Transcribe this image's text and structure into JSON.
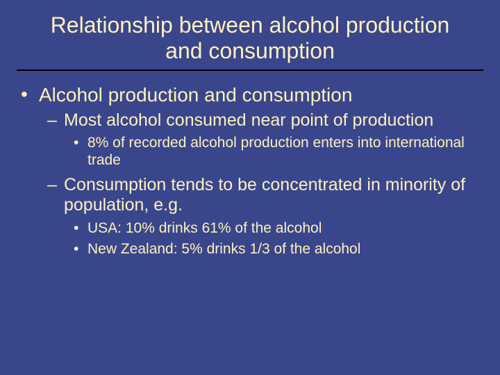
{
  "slide": {
    "background_color": "#3a468c",
    "text_color": "#fef1bc",
    "divider_color": "#000000",
    "title": {
      "text": "Relationship between alcohol production and consumption",
      "fontsize": 32,
      "color": "#fef1bc"
    },
    "fontsizes": {
      "lvl1": 28,
      "lvl2": 25,
      "lvl3": 21
    },
    "bullets": {
      "lvl1_sym": "•",
      "lvl2_sym": "–",
      "lvl3_sym": "•"
    },
    "items": {
      "b1": "Alcohol production and consumption",
      "b1_1": "Most alcohol consumed near point of production",
      "b1_1_1": "8% of recorded alcohol production enters into international trade",
      "b1_2": "Consumption tends to be concentrated in minority of population, e.g.",
      "b1_2_1": "USA: 10% drinks 61% of the alcohol",
      "b1_2_2": "New Zealand: 5% drinks 1/3 of the alcohol"
    }
  }
}
